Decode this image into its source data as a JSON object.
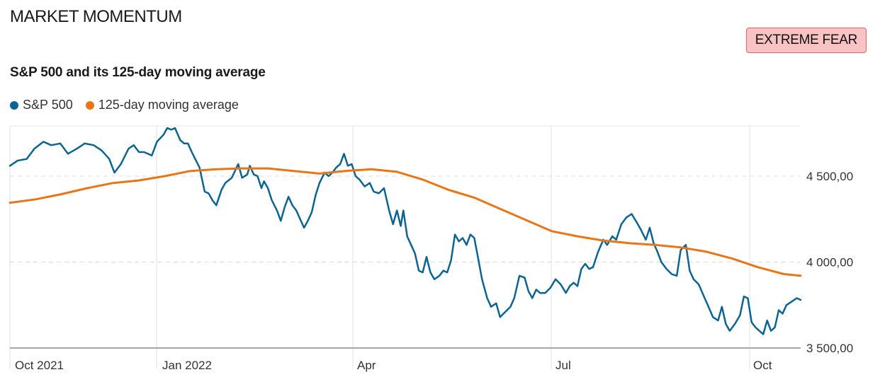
{
  "header": {
    "title": "MARKET MOMENTUM",
    "badge_label": "EXTREME FEAR"
  },
  "colors": {
    "sp500": "#0c6491",
    "moving_average": "#e87616",
    "badge_bg": "#f9c3c3",
    "badge_border": "#e06767"
  },
  "chart_data": {
    "type": "line",
    "title": "S&P 500 and its 125-day moving average",
    "x_ticks": [
      "Oct 2021",
      "Jan 2022",
      "Apr",
      "Jul",
      "Oct"
    ],
    "y_ticks": [
      "4 500,00",
      "4 000,00",
      "3 500,00"
    ],
    "ylim": [
      3500,
      4780
    ],
    "grid": "dashed horizontal and vertical",
    "legend_position": "top-left",
    "series": [
      {
        "name": "S&P 500",
        "color": "#0c6491",
        "points": [
          [
            0,
            4560
          ],
          [
            6,
            4590
          ],
          [
            13,
            4600
          ],
          [
            19,
            4660
          ],
          [
            26,
            4700
          ],
          [
            32,
            4680
          ],
          [
            39,
            4690
          ],
          [
            45,
            4630
          ],
          [
            52,
            4660
          ],
          [
            58,
            4690
          ],
          [
            65,
            4680
          ],
          [
            71,
            4650
          ],
          [
            77,
            4600
          ],
          [
            81,
            4520
          ],
          [
            86,
            4570
          ],
          [
            92,
            4660
          ],
          [
            96,
            4680
          ],
          [
            100,
            4640
          ],
          [
            104,
            4640
          ],
          [
            110,
            4620
          ],
          [
            114,
            4700
          ],
          [
            119,
            4740
          ],
          [
            122,
            4780
          ],
          [
            125,
            4770
          ],
          [
            128,
            4780
          ],
          [
            132,
            4710
          ],
          [
            135,
            4690
          ],
          [
            138,
            4690
          ],
          [
            141,
            4640
          ],
          [
            143,
            4610
          ],
          [
            147,
            4550
          ],
          [
            151,
            4410
          ],
          [
            154,
            4400
          ],
          [
            157,
            4360
          ],
          [
            160,
            4330
          ],
          [
            164,
            4420
          ],
          [
            167,
            4460
          ],
          [
            172,
            4490
          ],
          [
            177,
            4570
          ],
          [
            180,
            4490
          ],
          [
            184,
            4510
          ],
          [
            186,
            4560
          ],
          [
            189,
            4510
          ],
          [
            192,
            4500
          ],
          [
            195,
            4430
          ],
          [
            197,
            4470
          ],
          [
            200,
            4430
          ],
          [
            203,
            4360
          ],
          [
            207,
            4300
          ],
          [
            210,
            4240
          ],
          [
            213,
            4320
          ],
          [
            216,
            4380
          ],
          [
            219,
            4330
          ],
          [
            222,
            4300
          ],
          [
            225,
            4250
          ],
          [
            228,
            4200
          ],
          [
            231,
            4240
          ],
          [
            234,
            4290
          ],
          [
            237,
            4390
          ],
          [
            240,
            4460
          ],
          [
            244,
            4520
          ],
          [
            247,
            4500
          ],
          [
            250,
            4520
          ],
          [
            253,
            4550
          ],
          [
            256,
            4570
          ],
          [
            259,
            4630
          ],
          [
            262,
            4560
          ],
          [
            265,
            4570
          ],
          [
            268,
            4500
          ],
          [
            271,
            4480
          ],
          [
            275,
            4440
          ],
          [
            279,
            4460
          ],
          [
            282,
            4410
          ],
          [
            286,
            4400
          ],
          [
            290,
            4430
          ],
          [
            294,
            4300
          ],
          [
            297,
            4220
          ],
          [
            300,
            4300
          ],
          [
            303,
            4210
          ],
          [
            305,
            4300
          ],
          [
            308,
            4150
          ],
          [
            311,
            4100
          ],
          [
            314,
            4050
          ],
          [
            317,
            3950
          ],
          [
            320,
            3940
          ],
          [
            323,
            4030
          ],
          [
            326,
            3940
          ],
          [
            329,
            3900
          ],
          [
            333,
            3920
          ],
          [
            336,
            3950
          ],
          [
            339,
            3940
          ],
          [
            342,
            4010
          ],
          [
            345,
            4160
          ],
          [
            348,
            4120
          ],
          [
            351,
            4140
          ],
          [
            354,
            4100
          ],
          [
            357,
            4160
          ],
          [
            360,
            4140
          ],
          [
            363,
            4020
          ],
          [
            366,
            3900
          ],
          [
            370,
            3790
          ],
          [
            373,
            3740
          ],
          [
            377,
            3760
          ],
          [
            380,
            3680
          ],
          [
            384,
            3710
          ],
          [
            388,
            3740
          ],
          [
            391,
            3790
          ],
          [
            395,
            3920
          ],
          [
            399,
            3910
          ],
          [
            402,
            3830
          ],
          [
            405,
            3790
          ],
          [
            408,
            3840
          ],
          [
            411,
            3820
          ],
          [
            415,
            3820
          ],
          [
            419,
            3850
          ],
          [
            423,
            3900
          ],
          [
            427,
            3870
          ],
          [
            431,
            3820
          ],
          [
            434,
            3860
          ],
          [
            437,
            3880
          ],
          [
            440,
            3860
          ],
          [
            443,
            3960
          ],
          [
            446,
            3990
          ],
          [
            449,
            3960
          ],
          [
            452,
            3970
          ],
          [
            456,
            4060
          ],
          [
            460,
            4130
          ],
          [
            463,
            4100
          ],
          [
            467,
            4150
          ],
          [
            470,
            4130
          ],
          [
            474,
            4220
          ],
          [
            478,
            4260
          ],
          [
            482,
            4280
          ],
          [
            486,
            4230
          ],
          [
            489,
            4190
          ],
          [
            493,
            4130
          ],
          [
            496,
            4200
          ],
          [
            499,
            4110
          ],
          [
            502,
            4060
          ],
          [
            505,
            4000
          ],
          [
            509,
            3960
          ],
          [
            513,
            3930
          ],
          [
            517,
            3920
          ],
          [
            520,
            4070
          ],
          [
            524,
            4100
          ],
          [
            527,
            3950
          ],
          [
            530,
            3900
          ],
          [
            534,
            3870
          ],
          [
            538,
            3800
          ],
          [
            541,
            3750
          ],
          [
            545,
            3680
          ],
          [
            549,
            3660
          ],
          [
            552,
            3740
          ],
          [
            555,
            3640
          ],
          [
            558,
            3600
          ],
          [
            562,
            3640
          ],
          [
            566,
            3690
          ],
          [
            569,
            3800
          ],
          [
            572,
            3790
          ],
          [
            575,
            3650
          ],
          [
            578,
            3620
          ],
          [
            581,
            3600
          ],
          [
            584,
            3580
          ],
          [
            587,
            3660
          ],
          [
            590,
            3600
          ],
          [
            593,
            3620
          ],
          [
            596,
            3720
          ],
          [
            599,
            3700
          ],
          [
            602,
            3750
          ],
          [
            606,
            3770
          ],
          [
            610,
            3790
          ],
          [
            613,
            3780
          ]
        ]
      },
      {
        "name": "125-day moving average",
        "color": "#e87616",
        "points": [
          [
            0,
            4345
          ],
          [
            20,
            4365
          ],
          [
            40,
            4395
          ],
          [
            60,
            4430
          ],
          [
            80,
            4460
          ],
          [
            100,
            4475
          ],
          [
            120,
            4500
          ],
          [
            140,
            4530
          ],
          [
            160,
            4540
          ],
          [
            180,
            4545
          ],
          [
            200,
            4545
          ],
          [
            220,
            4530
          ],
          [
            240,
            4515
          ],
          [
            260,
            4530
          ],
          [
            280,
            4540
          ],
          [
            300,
            4525
          ],
          [
            320,
            4480
          ],
          [
            340,
            4420
          ],
          [
            360,
            4375
          ],
          [
            380,
            4310
          ],
          [
            400,
            4245
          ],
          [
            420,
            4180
          ],
          [
            440,
            4150
          ],
          [
            460,
            4125
          ],
          [
            480,
            4110
          ],
          [
            500,
            4100
          ],
          [
            520,
            4085
          ],
          [
            540,
            4060
          ],
          [
            560,
            4020
          ],
          [
            580,
            3970
          ],
          [
            600,
            3930
          ],
          [
            613,
            3920
          ]
        ]
      }
    ]
  }
}
